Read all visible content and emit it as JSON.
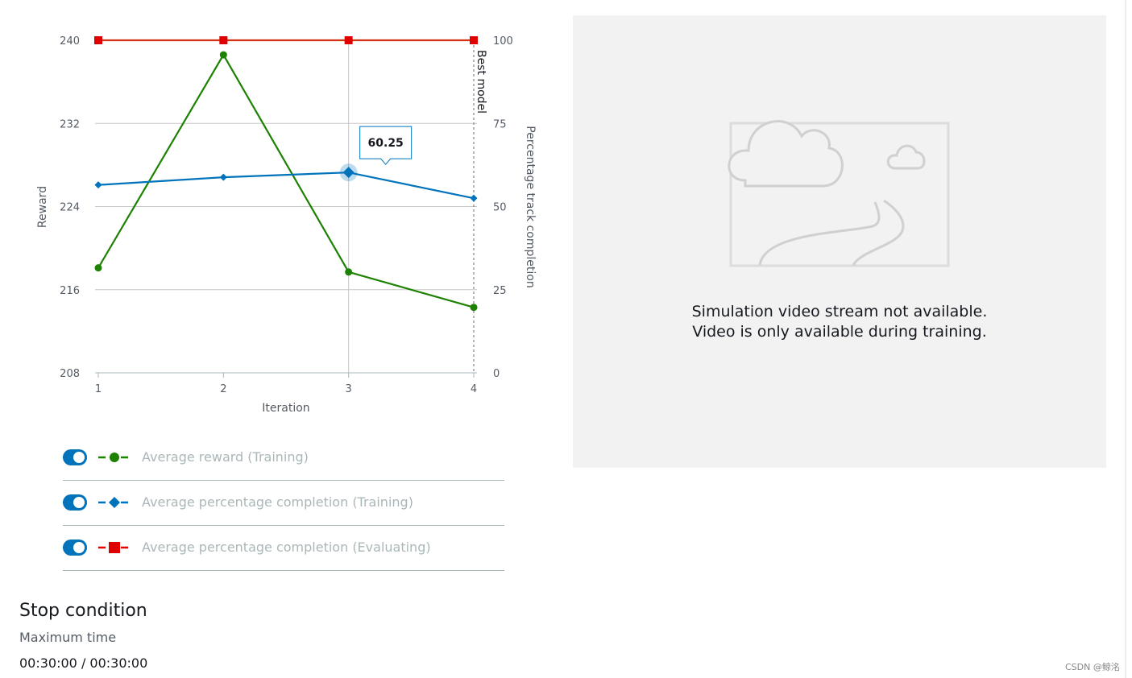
{
  "chart_data": {
    "type": "line",
    "x": [
      1,
      2,
      3,
      4
    ],
    "xlabel": "Iteration",
    "y_left_label": "Reward",
    "y_left_lim": [
      208,
      240
    ],
    "y_left_ticks": [
      208,
      216,
      224,
      232,
      240
    ],
    "y_right_label": "Percentage track completion",
    "y_right_lim": [
      0,
      100
    ],
    "y_right_ticks": [
      0,
      25,
      50,
      75,
      100
    ],
    "grid": true,
    "best_model_label": "Best model",
    "best_model_x": 4,
    "tooltip": {
      "x": 3,
      "text": "60.25"
    },
    "series": [
      {
        "name": "Average reward (Training)",
        "axis": "left",
        "color": "#1d8102",
        "marker": "circle",
        "values": [
          218.1,
          238.6,
          217.7,
          214.3
        ]
      },
      {
        "name": "Average percentage completion (Training)",
        "axis": "right",
        "color": "#0073bb",
        "marker": "diamond",
        "values": [
          56.5,
          58.8,
          60.25,
          52.5
        ]
      },
      {
        "name": "Average percentage completion (Evaluating)",
        "axis": "right",
        "color": "#d13212",
        "marker": "square",
        "values": [
          100,
          100,
          100,
          100
        ]
      }
    ]
  },
  "legend": [
    {
      "label": "Average reward (Training)",
      "color": "#1d8102",
      "marker": "circle",
      "toggle_on": true
    },
    {
      "label": "Average percentage completion (Training)",
      "color": "#0073bb",
      "marker": "diamond",
      "toggle_on": true
    },
    {
      "label": "Average percentage completion (Evaluating)",
      "color": "#e00000",
      "marker": "square",
      "toggle_on": true
    }
  ],
  "video": {
    "message_line1": "Simulation video stream not available.",
    "message_line2": "Video is only available during training.",
    "placeholder_icon": "image-placeholder-icon"
  },
  "stop_condition": {
    "title": "Stop condition",
    "label": "Maximum time",
    "value": "00:30:00 / 00:30:00"
  },
  "watermark": "CSDN @鲸洺"
}
